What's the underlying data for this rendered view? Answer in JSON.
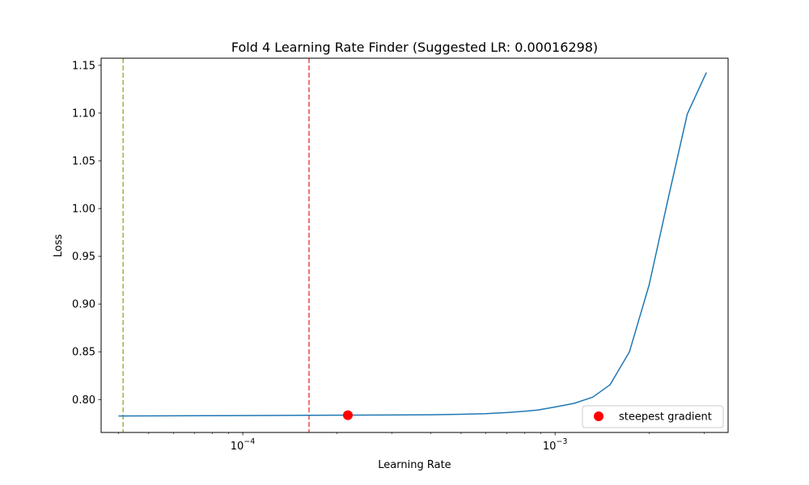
{
  "chart_data": {
    "type": "line",
    "title": "Fold 4 Learning Rate Finder (Suggested LR: 0.00016298)",
    "xlabel": "Learning Rate",
    "ylabel": "Loss",
    "xscale": "log",
    "xlim": [
      3.52e-05,
      0.00358
    ],
    "ylim": [
      0.7655,
      1.1575
    ],
    "x_ticks": [
      {
        "value": 0.0001,
        "base": "10",
        "exp": "−4"
      },
      {
        "value": 0.001,
        "base": "10",
        "exp": "−3"
      }
    ],
    "y_ticks": [
      "0.80",
      "0.85",
      "0.90",
      "0.95",
      "1.00",
      "1.05",
      "1.10",
      "1.15"
    ],
    "grid": false,
    "legend_position": "lower right",
    "series": [
      {
        "color": "#1f77b4",
        "x": [
          4e-05,
          0.0001,
          0.0002,
          0.0003,
          0.0004,
          0.0005,
          0.0006,
          0.0007,
          0.0008,
          0.00088,
          0.001,
          0.00115,
          0.00132,
          0.0015,
          0.00173,
          0.002,
          0.0023,
          0.00265,
          0.00305
        ],
        "y": [
          0.7827,
          0.7832,
          0.7836,
          0.7838,
          0.784,
          0.7845,
          0.7852,
          0.7863,
          0.7877,
          0.789,
          0.7922,
          0.796,
          0.8025,
          0.8155,
          0.85,
          0.92,
          1.01,
          1.099,
          1.1425
        ]
      }
    ],
    "vlines": [
      {
        "x": 4.14e-05,
        "color": "#9ab73e"
      },
      {
        "x": 0.00016298,
        "color": "#ea4a4a"
      }
    ],
    "points": [
      {
        "name": "steepest gradient",
        "x": 0.000217,
        "y": 0.7836,
        "color": "#ff0000"
      }
    ]
  }
}
